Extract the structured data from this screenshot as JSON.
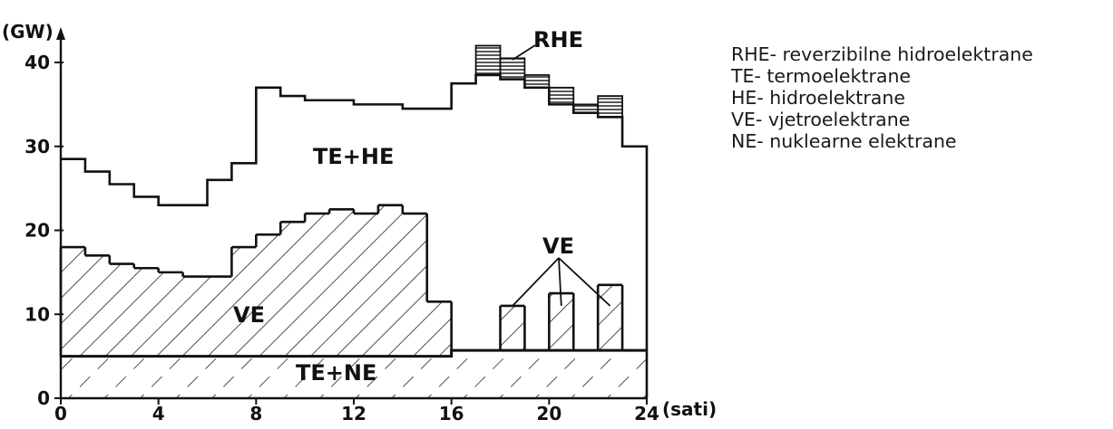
{
  "chart_data": {
    "type": "area",
    "ylabel": "(GW)",
    "xlabel": "(sati)",
    "x_ticks": [
      "0",
      "4",
      "8",
      "12",
      "16",
      "20",
      "24"
    ],
    "y_ticks": [
      "0",
      "10",
      "20",
      "30",
      "40"
    ],
    "xlim": [
      0,
      24
    ],
    "ylim": [
      0,
      42
    ],
    "hours": [
      0,
      1,
      2,
      3,
      4,
      5,
      6,
      7,
      8,
      9,
      10,
      11,
      12,
      13,
      14,
      15,
      16,
      17,
      18,
      19,
      20,
      21,
      22,
      23
    ],
    "series": [
      {
        "label": "TE+NE",
        "values": [
          5,
          5,
          5,
          5,
          5,
          5,
          5,
          5,
          5,
          5,
          5,
          5,
          5,
          5,
          5,
          5,
          5.7,
          5.7,
          5.7,
          5.7,
          5.7,
          5.7,
          5.7,
          5.7
        ]
      },
      {
        "label": "VE",
        "values": [
          18,
          17,
          16,
          15.5,
          15,
          14.5,
          14.5,
          18,
          19.5,
          21,
          22,
          22.5,
          22,
          23,
          22,
          11.5,
          0,
          0,
          11,
          0,
          12.5,
          0,
          13.5,
          0
        ]
      },
      {
        "label": "TE+HE",
        "values": [
          28.5,
          27,
          25.5,
          24,
          23,
          23,
          26,
          28,
          37,
          36,
          35.5,
          35.5,
          35,
          35,
          34.5,
          34.5,
          37.5,
          38.5,
          38,
          37,
          35,
          34,
          33.5,
          30
        ]
      },
      {
        "label": "RHE",
        "values": [
          0,
          0,
          0,
          0,
          0,
          0,
          0,
          0,
          0,
          0,
          0,
          0,
          0,
          0,
          0,
          0,
          0,
          3.5,
          2.5,
          1.5,
          2,
          1,
          2.5,
          0
        ]
      }
    ],
    "annotations": [
      "RHE",
      "TE+HE",
      "VE",
      "VE",
      "TE+NE"
    ]
  },
  "legend": [
    "RHE- reverzibilne hidroelektrane",
    "TE- termoelektrane",
    "HE- hidroelektrane",
    "VE- vjetroelektrane",
    "NE- nuklearne elektrane"
  ]
}
